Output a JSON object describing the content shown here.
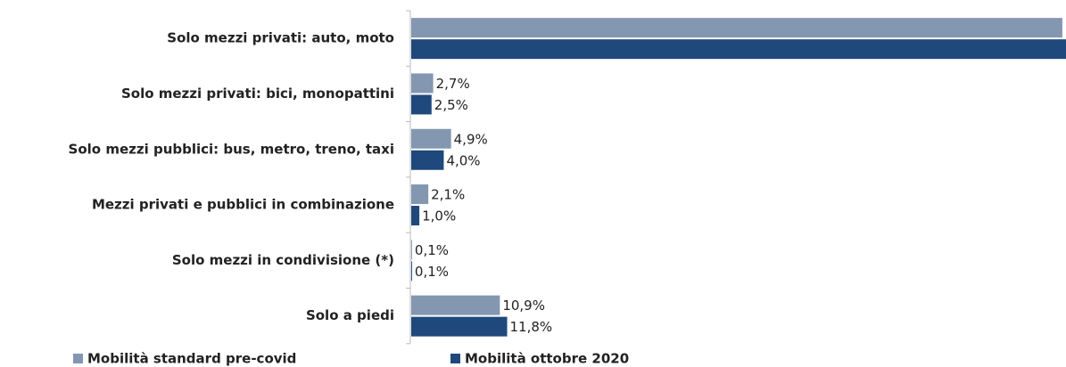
{
  "chart_data": {
    "type": "bar",
    "orientation": "horizontal",
    "categories": [
      "Solo mezzi privati: auto, moto",
      "Solo mezzi privati: bici, monopattini",
      "Solo mezzi pubblici: bus, metro, treno, taxi",
      "Mezzi privati e pubblici in combinazione",
      "Solo mezzi in condivisione (*)",
      "Solo a piedi"
    ],
    "series": [
      {
        "name": "Mobilità standard pre-covid",
        "color": "#8497b0",
        "values": [
          80.1,
          2.7,
          4.9,
          2.1,
          0.1,
          10.9
        ],
        "value_labels": [
          null,
          "2,7%",
          "4,9%",
          "2,1%",
          "0,1%",
          "10,9%"
        ]
      },
      {
        "name": "Mobilità ottobre 2020",
        "color": "#1f497d",
        "values": [
          81.7,
          2.5,
          4.0,
          1.0,
          0.1,
          11.8
        ],
        "value_labels": [
          null,
          "2,5%",
          "4,0%",
          "1,0%",
          "0,1%",
          "11,8%"
        ]
      }
    ],
    "xlim": [
      0,
      80
    ],
    "legend": "bottom"
  }
}
